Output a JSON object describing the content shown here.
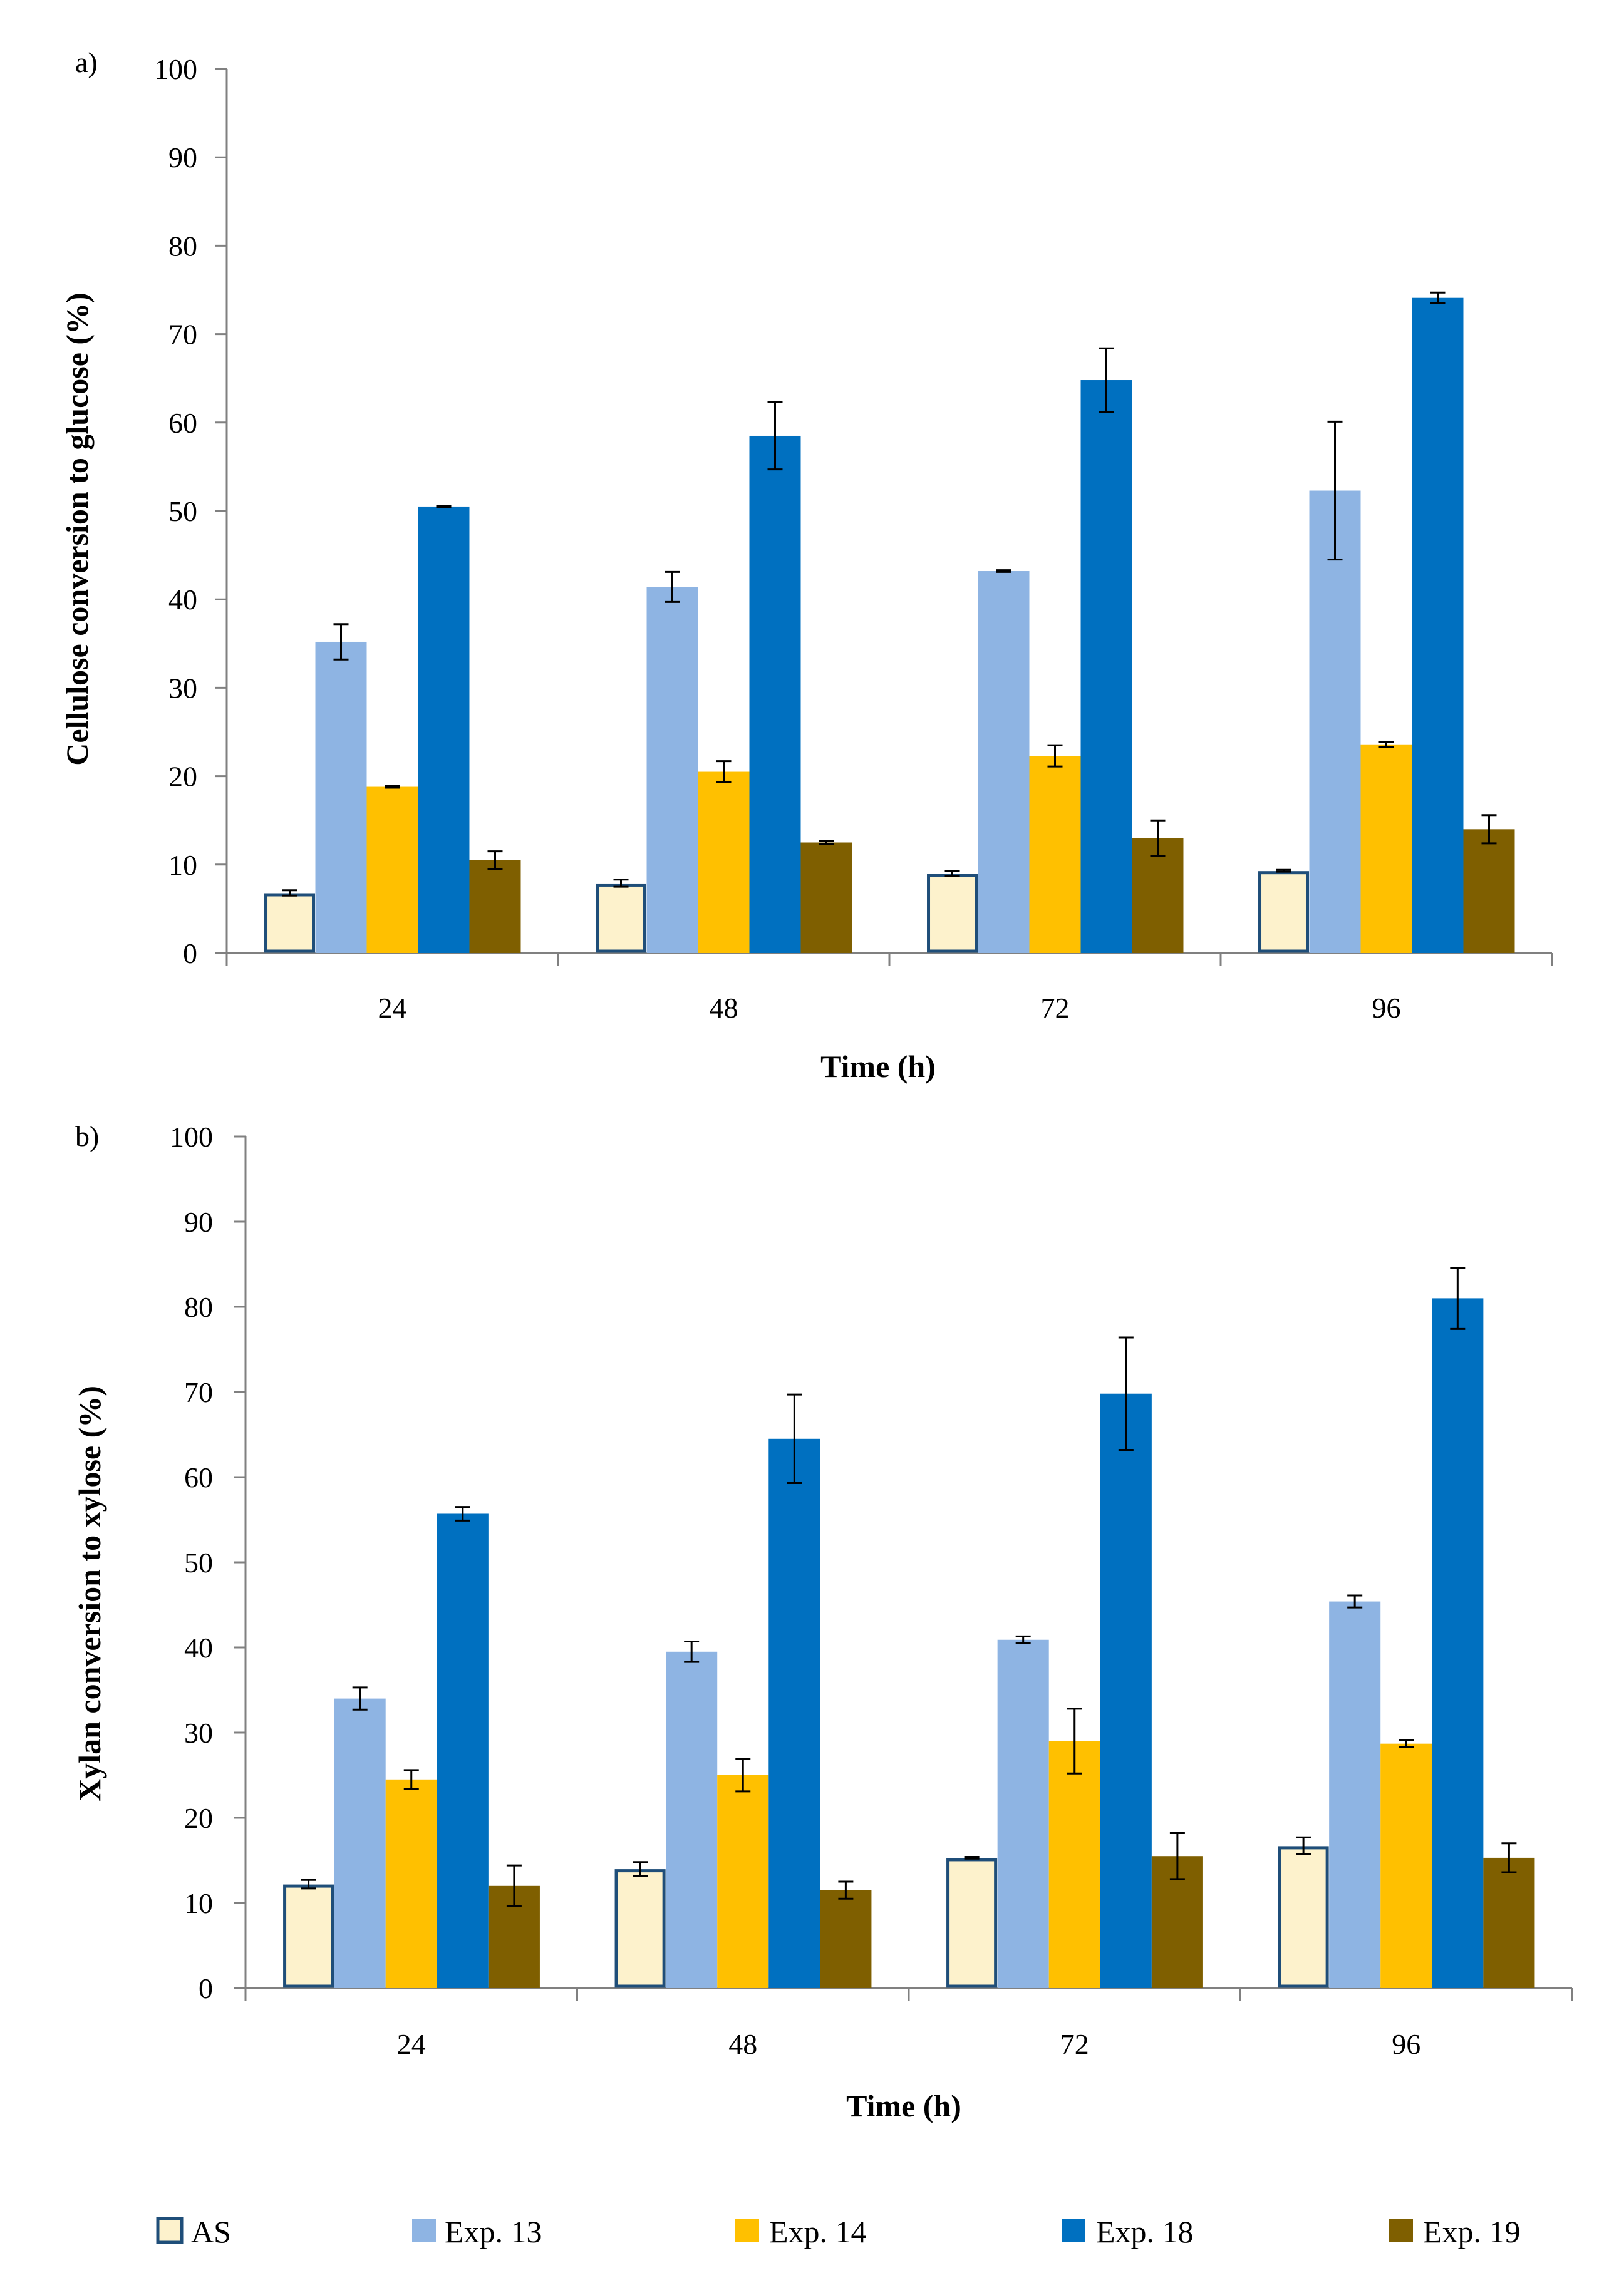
{
  "legend": [
    {
      "label": "AS",
      "color": "#FDF2CC",
      "stroke": "#1F4E79"
    },
    {
      "label": "Exp. 13",
      "color": "#8EB4E3",
      "stroke": "none"
    },
    {
      "label": "Exp. 14",
      "color": "#FFC000",
      "stroke": "none"
    },
    {
      "label": "Exp. 18",
      "color": "#0070C0",
      "stroke": "none"
    },
    {
      "label": "Exp. 19",
      "color": "#7F5F00",
      "stroke": "none"
    }
  ],
  "chart_data": [
    {
      "type": "bar",
      "panel_label": "a)",
      "title": "",
      "xlabel": "Time (h)",
      "ylabel": "Cellulose conversion to glucose (%)",
      "ylim": [
        0,
        100
      ],
      "yticks": [
        0,
        10,
        20,
        30,
        40,
        50,
        60,
        70,
        80,
        90,
        100
      ],
      "categories": [
        "24",
        "48",
        "72",
        "96"
      ],
      "series": [
        {
          "name": "AS",
          "values": [
            6.8,
            7.9,
            9.0,
            9.3
          ],
          "errors": [
            0.3,
            0.4,
            0.3,
            0.1
          ]
        },
        {
          "name": "Exp. 13",
          "values": [
            35.2,
            41.4,
            43.2,
            52.3
          ],
          "errors": [
            2.0,
            1.7,
            0.1,
            7.8
          ]
        },
        {
          "name": "Exp. 14",
          "values": [
            18.8,
            20.5,
            22.3,
            23.6
          ],
          "errors": [
            0.1,
            1.2,
            1.2,
            0.3
          ]
        },
        {
          "name": "Exp. 18",
          "values": [
            50.5,
            58.5,
            64.8,
            74.1
          ],
          "errors": [
            0.1,
            3.8,
            3.6,
            0.6
          ]
        },
        {
          "name": "Exp. 19",
          "values": [
            10.5,
            12.5,
            13.0,
            14.0
          ],
          "errors": [
            1.0,
            0.2,
            2.0,
            1.6
          ]
        }
      ]
    },
    {
      "type": "bar",
      "panel_label": "b)",
      "title": "",
      "xlabel": "Time (h)",
      "ylabel": "Xylan conversion to xylose (%)",
      "ylim": [
        0,
        100
      ],
      "yticks": [
        0,
        10,
        20,
        30,
        40,
        50,
        60,
        70,
        80,
        90,
        100
      ],
      "categories": [
        "24",
        "48",
        "72",
        "96"
      ],
      "series": [
        {
          "name": "AS",
          "values": [
            12.2,
            14.0,
            15.3,
            16.7
          ],
          "errors": [
            0.5,
            0.8,
            0.1,
            1.0
          ]
        },
        {
          "name": "Exp. 13",
          "values": [
            34.0,
            39.5,
            40.9,
            45.4
          ],
          "errors": [
            1.3,
            1.2,
            0.4,
            0.7
          ]
        },
        {
          "name": "Exp. 14",
          "values": [
            24.5,
            25.0,
            29.0,
            28.7
          ],
          "errors": [
            1.1,
            1.9,
            3.8,
            0.4
          ]
        },
        {
          "name": "Exp. 18",
          "values": [
            55.7,
            64.5,
            69.8,
            81.0
          ],
          "errors": [
            0.8,
            5.2,
            6.6,
            3.6
          ]
        },
        {
          "name": "Exp. 19",
          "values": [
            12.0,
            11.5,
            15.5,
            15.3
          ],
          "errors": [
            2.4,
            1.0,
            2.7,
            1.7
          ]
        }
      ]
    }
  ]
}
